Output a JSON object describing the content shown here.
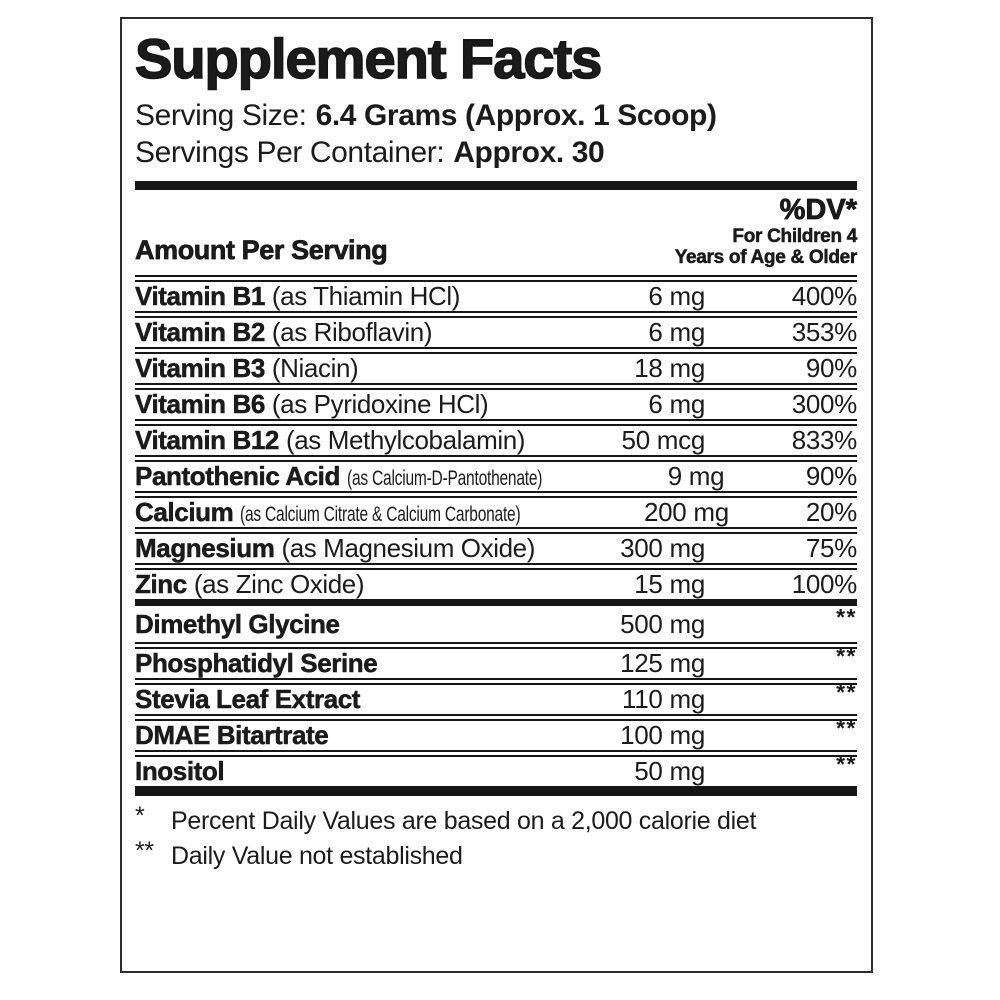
{
  "panel": {
    "title": "Supplement Facts",
    "serving": {
      "label": "Serving Size:",
      "value": "6.4 Grams (Approx. 1 Scoop)"
    },
    "container": {
      "label": "Servings Per Container:",
      "value": "Approx. 30"
    },
    "columns": {
      "amount_header": "Amount Per Serving",
      "dv_header": "%DV*",
      "dv_sub1": "For Children 4",
      "dv_sub2": "Years of Age & Older"
    },
    "rows": [
      {
        "name": "Vitamin B1",
        "desc": "(as Thiamin HCl)",
        "amount": "6 mg",
        "dv": "400%"
      },
      {
        "name": "Vitamin B2",
        "desc": "(as Riboflavin)",
        "amount": "6 mg",
        "dv": "353%"
      },
      {
        "name": "Vitamin B3",
        "desc": "(Niacin)",
        "amount": "18 mg",
        "dv": "90%"
      },
      {
        "name": "Vitamin B6",
        "desc": "(as Pyridoxine HCl)",
        "amount": "6 mg",
        "dv": "300%"
      },
      {
        "name": "Vitamin B12",
        "desc": "(as Methylcobalamin)",
        "amount": "50 mcg",
        "dv": "833%"
      },
      {
        "name": "Pantothenic Acid",
        "desc": "(as Calcium-D-Pantothenate)",
        "amount": "9 mg",
        "dv": "90%"
      },
      {
        "name": "Calcium",
        "desc": "(as Calcium Citrate & Calcium Carbonate)",
        "amount": "200 mg",
        "dv": "20%"
      },
      {
        "name": "Magnesium",
        "desc": "(as Magnesium Oxide)",
        "amount": "300 mg",
        "dv": "75%"
      },
      {
        "name": "Zinc",
        "desc": "(as Zinc Oxide)",
        "amount": "15 mg",
        "dv": "100%"
      },
      {
        "name": "Dimethyl Glycine",
        "desc": "",
        "amount": "500 mg",
        "dv": "**"
      },
      {
        "name": "Phosphatidyl Serine",
        "desc": "",
        "amount": "125 mg",
        "dv": "**"
      },
      {
        "name": "Stevia Leaf Extract",
        "desc": "",
        "amount": "110 mg",
        "dv": "**"
      },
      {
        "name": "DMAE Bitartrate",
        "desc": "",
        "amount": "100 mg",
        "dv": "**"
      },
      {
        "name": "Inositol",
        "desc": "",
        "amount": "50 mg",
        "dv": "**"
      }
    ],
    "footnotes": [
      {
        "marker": "*",
        "text": "Percent Daily Values are based on a 2,000 calorie diet"
      },
      {
        "marker": "**",
        "text": "Daily Value not established"
      }
    ],
    "colors": {
      "text": "#1b1b1b",
      "rule": "#161616",
      "border": "#2d2d2d",
      "background": "#ffffff"
    }
  }
}
